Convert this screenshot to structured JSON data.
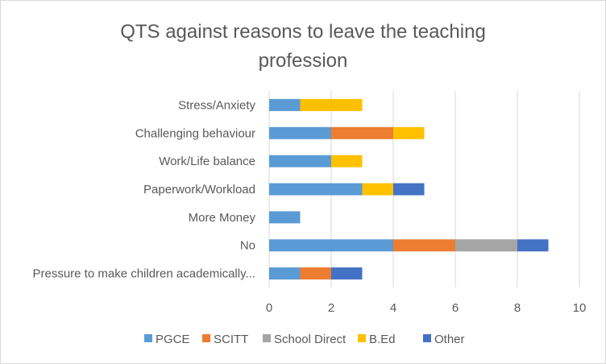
{
  "chart_data": {
    "type": "bar",
    "orientation": "horizontal",
    "stacked": true,
    "title": "QTS against reasons to leave the teaching profession",
    "title_lines": [
      "QTS against reasons to leave the teaching",
      "profession"
    ],
    "categories": [
      "Stress/Anxiety",
      "Challenging behaviour",
      "Work/Life balance",
      "Paperwork/Workload",
      "More Money",
      "No",
      "Pressure to make children academically..."
    ],
    "series": [
      {
        "name": "PGCE",
        "color": "#5b9bd5",
        "values": [
          1,
          2,
          2,
          3,
          1,
          4,
          1
        ]
      },
      {
        "name": "SCITT",
        "color": "#ed7d31",
        "values": [
          0,
          2,
          0,
          0,
          0,
          2,
          1
        ]
      },
      {
        "name": "School Direct",
        "color": "#a5a5a5",
        "values": [
          0,
          0,
          0,
          0,
          0,
          2,
          0
        ]
      },
      {
        "name": "B.Ed",
        "color": "#ffc000",
        "values": [
          2,
          1,
          1,
          1,
          0,
          0,
          0
        ]
      },
      {
        "name": "Other",
        "color": "#4472c4",
        "values": [
          0,
          0,
          0,
          1,
          0,
          1,
          1
        ]
      }
    ],
    "xlim": [
      0,
      10
    ],
    "x_ticks": [
      "0",
      "2",
      "4",
      "6",
      "8",
      "10"
    ],
    "xlabel": "",
    "ylabel": "",
    "grid": true,
    "legend_position": "bottom"
  }
}
